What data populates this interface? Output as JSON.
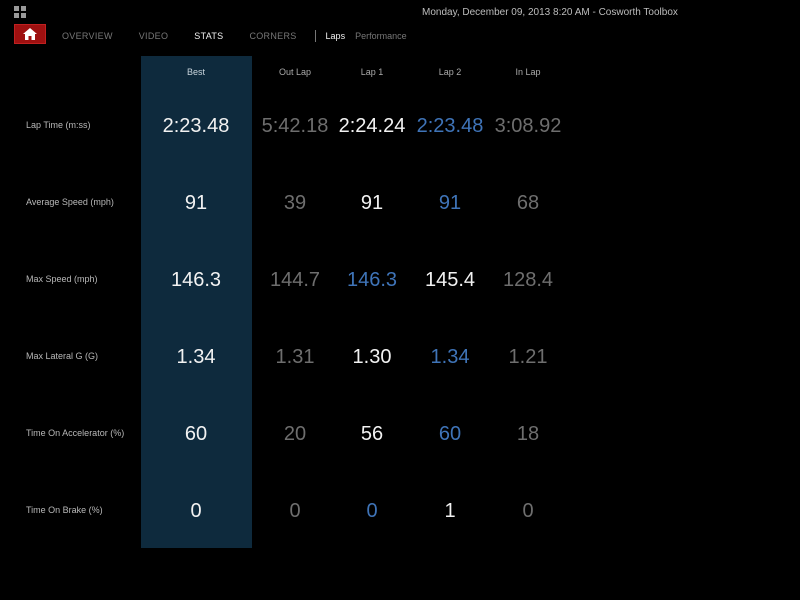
{
  "title_bar": "Monday, December 09, 2013 8:20 AM - Cosworth Toolbox",
  "nav": {
    "home_icon": "home-icon",
    "tabs": [
      {
        "label": "OVERVIEW",
        "active": false
      },
      {
        "label": "VIDEO",
        "active": false
      },
      {
        "label": "STATS",
        "active": true
      },
      {
        "label": "CORNERS",
        "active": false
      }
    ],
    "subtabs": [
      {
        "label": "Laps",
        "active": true
      },
      {
        "label": "Performance",
        "active": false
      }
    ]
  },
  "colors": {
    "best_column_bg": "#0e2a3d",
    "home_button": "#9e1010",
    "highlight_blue": "#3f74b8",
    "dim_gray": "#6e6e6e",
    "white": "#f2f2f2"
  },
  "table": {
    "columns": [
      "Best",
      "Out Lap",
      "Lap 1",
      "Lap 2",
      "In Lap"
    ],
    "rows": [
      {
        "label": "Lap Time (m:ss)",
        "values": [
          "2:23.48",
          "5:42.18",
          "2:24.24",
          "2:23.48",
          "3:08.92"
        ],
        "styles": [
          "best",
          "gray",
          "white",
          "blue",
          "gray"
        ]
      },
      {
        "label": "Average Speed (mph)",
        "values": [
          "91",
          "39",
          "91",
          "91",
          "68"
        ],
        "styles": [
          "best",
          "gray",
          "white",
          "blue",
          "gray"
        ]
      },
      {
        "label": "Max Speed (mph)",
        "values": [
          "146.3",
          "144.7",
          "146.3",
          "145.4",
          "128.4"
        ],
        "styles": [
          "best",
          "gray",
          "blue",
          "white",
          "gray"
        ]
      },
      {
        "label": "Max Lateral G (G)",
        "values": [
          "1.34",
          "1.31",
          "1.30",
          "1.34",
          "1.21"
        ],
        "styles": [
          "best",
          "gray",
          "white",
          "blue",
          "gray"
        ]
      },
      {
        "label": "Time On Accelerator (%)",
        "values": [
          "60",
          "20",
          "56",
          "60",
          "18"
        ],
        "styles": [
          "best",
          "gray",
          "white",
          "blue",
          "gray"
        ]
      },
      {
        "label": "Time On Brake (%)",
        "values": [
          "0",
          "0",
          "0",
          "1",
          "0"
        ],
        "styles": [
          "best",
          "gray",
          "blue",
          "white",
          "gray"
        ]
      }
    ]
  }
}
